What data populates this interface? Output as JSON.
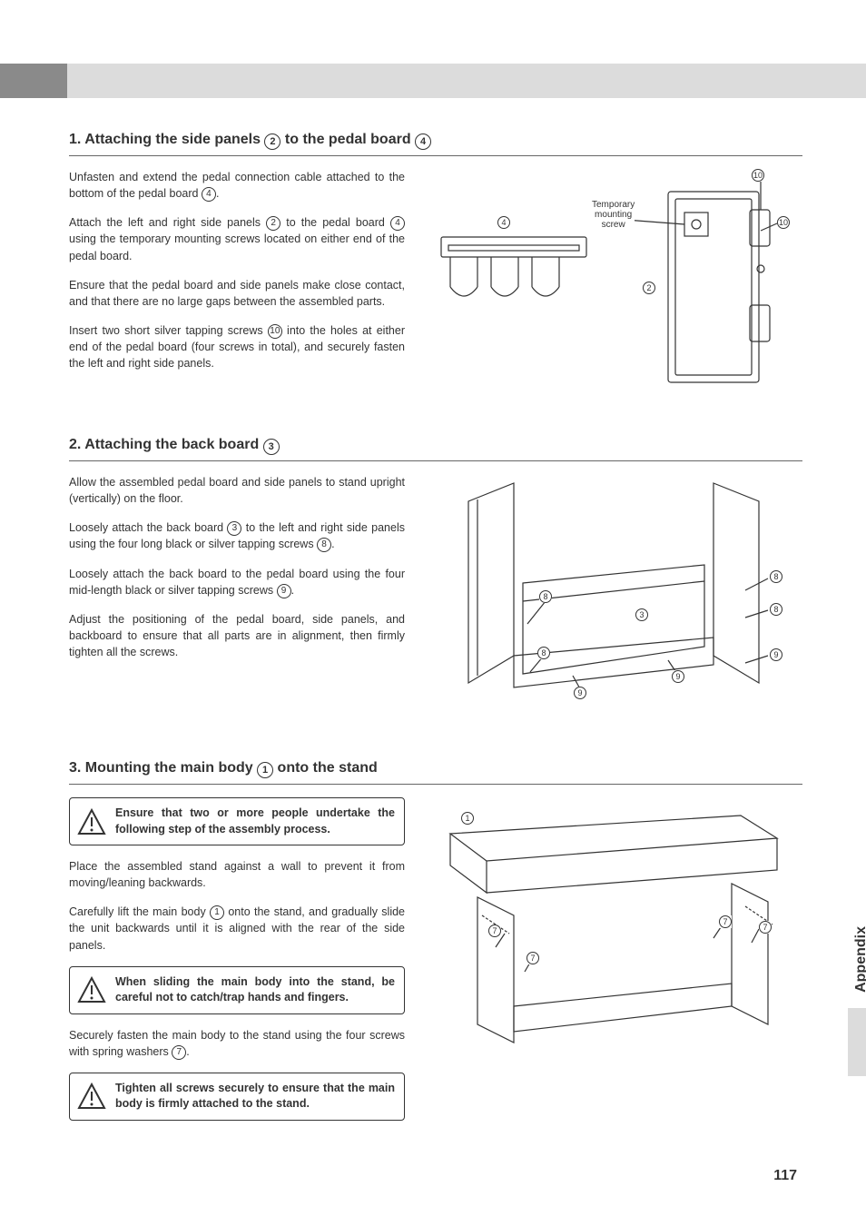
{
  "page_number": "117",
  "side_tab": "Appendix",
  "sections": [
    {
      "num": "1.",
      "heading_parts": [
        "Attaching the side panels ",
        "2",
        " to the pedal board ",
        "4"
      ],
      "paragraphs": [
        "Unfasten and extend the pedal connection cable attached to the bottom of the pedal board |4|.",
        "Attach the left and right side panels |2| to the pedal board |4| using the temporary mounting screws located on either end of the pedal board.",
        "Ensure that the pedal board and side panels make close contact, and that there are no large gaps between the assembled parts.",
        "Insert two short silver tapping screws |10| into the holes at either end of the pedal board (four screws in total), and securely fasten the left and right side panels."
      ],
      "diagram_labels": {
        "temp_screw": "Temporary mounting screw",
        "n4": "4",
        "n2": "2",
        "n10a": "10",
        "n10b": "10"
      }
    },
    {
      "num": "2.",
      "heading_parts": [
        "Attaching the back board ",
        "3"
      ],
      "paragraphs": [
        "Allow the assembled pedal board and side panels to stand upright (vertically) on the floor.",
        "Loosely attach the back board |3| to the left and right side panels using the four long black or silver tapping screws |8|.",
        "Loosely attach the back board to the pedal board using the four mid-length black or silver tapping screws |9|.",
        "Adjust the positioning of the pedal board, side panels, and backboard to ensure that all parts are in alignment, then firmly tighten all the screws."
      ],
      "diagram_labels": {
        "n3": "3",
        "n8": "8",
        "n9": "9"
      }
    },
    {
      "num": "3.",
      "heading_parts": [
        "Mounting the main body ",
        "1",
        " onto the stand"
      ],
      "warnings": [
        "Ensure that two or more people undertake the following step of the assembly process.",
        "When sliding the main body into the stand, be careful not to catch/trap hands and fingers.",
        "Tighten all screws securely to ensure that the main body is firmly attached to the stand."
      ],
      "paragraphs": [
        "Place the assembled stand against a wall to prevent it from moving/leaning backwards.",
        "Carefully lift the main body |1| onto the stand, and gradually slide the unit backwards until it is aligned with the rear of the side panels.",
        "Securely fasten the main body to the stand using the four screws with spring washers |7|."
      ],
      "diagram_labels": {
        "n1": "1",
        "n7": "7"
      }
    }
  ]
}
